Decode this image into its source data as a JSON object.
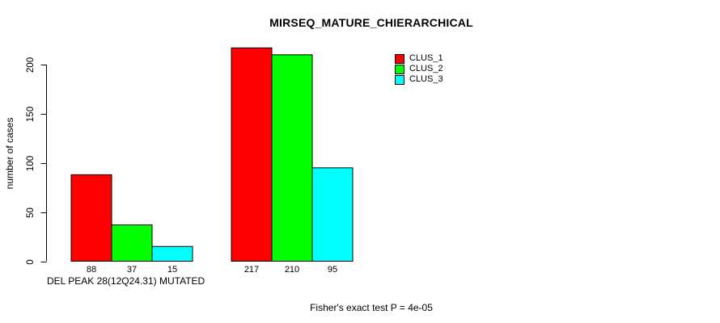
{
  "chart_data": {
    "type": "bar",
    "title": "MIRSEQ_MATURE_CHIERARCHICAL",
    "ylabel": "number of cases",
    "xlabel": "DEL PEAK 28(12Q24.31) MUTATED",
    "yticks": [
      0,
      50,
      100,
      150,
      200
    ],
    "ylim": [
      0,
      220
    ],
    "grid": false,
    "legend_position": "top-right",
    "bar_outline_color": "#000000",
    "background_color": "#ffffff",
    "series": [
      {
        "name": "CLUS_1",
        "color": "#ff0000",
        "values": [
          88,
          217
        ]
      },
      {
        "name": "CLUS_2",
        "color": "#00ff00",
        "values": [
          37,
          210
        ]
      },
      {
        "name": "CLUS_3",
        "color": "#00ffff",
        "values": [
          15,
          95
        ]
      }
    ],
    "bar_value_labels": [
      [
        88,
        37,
        15
      ],
      [
        217,
        210,
        95
      ]
    ],
    "annotation": "Fisher's exact test P = 4e-05"
  }
}
